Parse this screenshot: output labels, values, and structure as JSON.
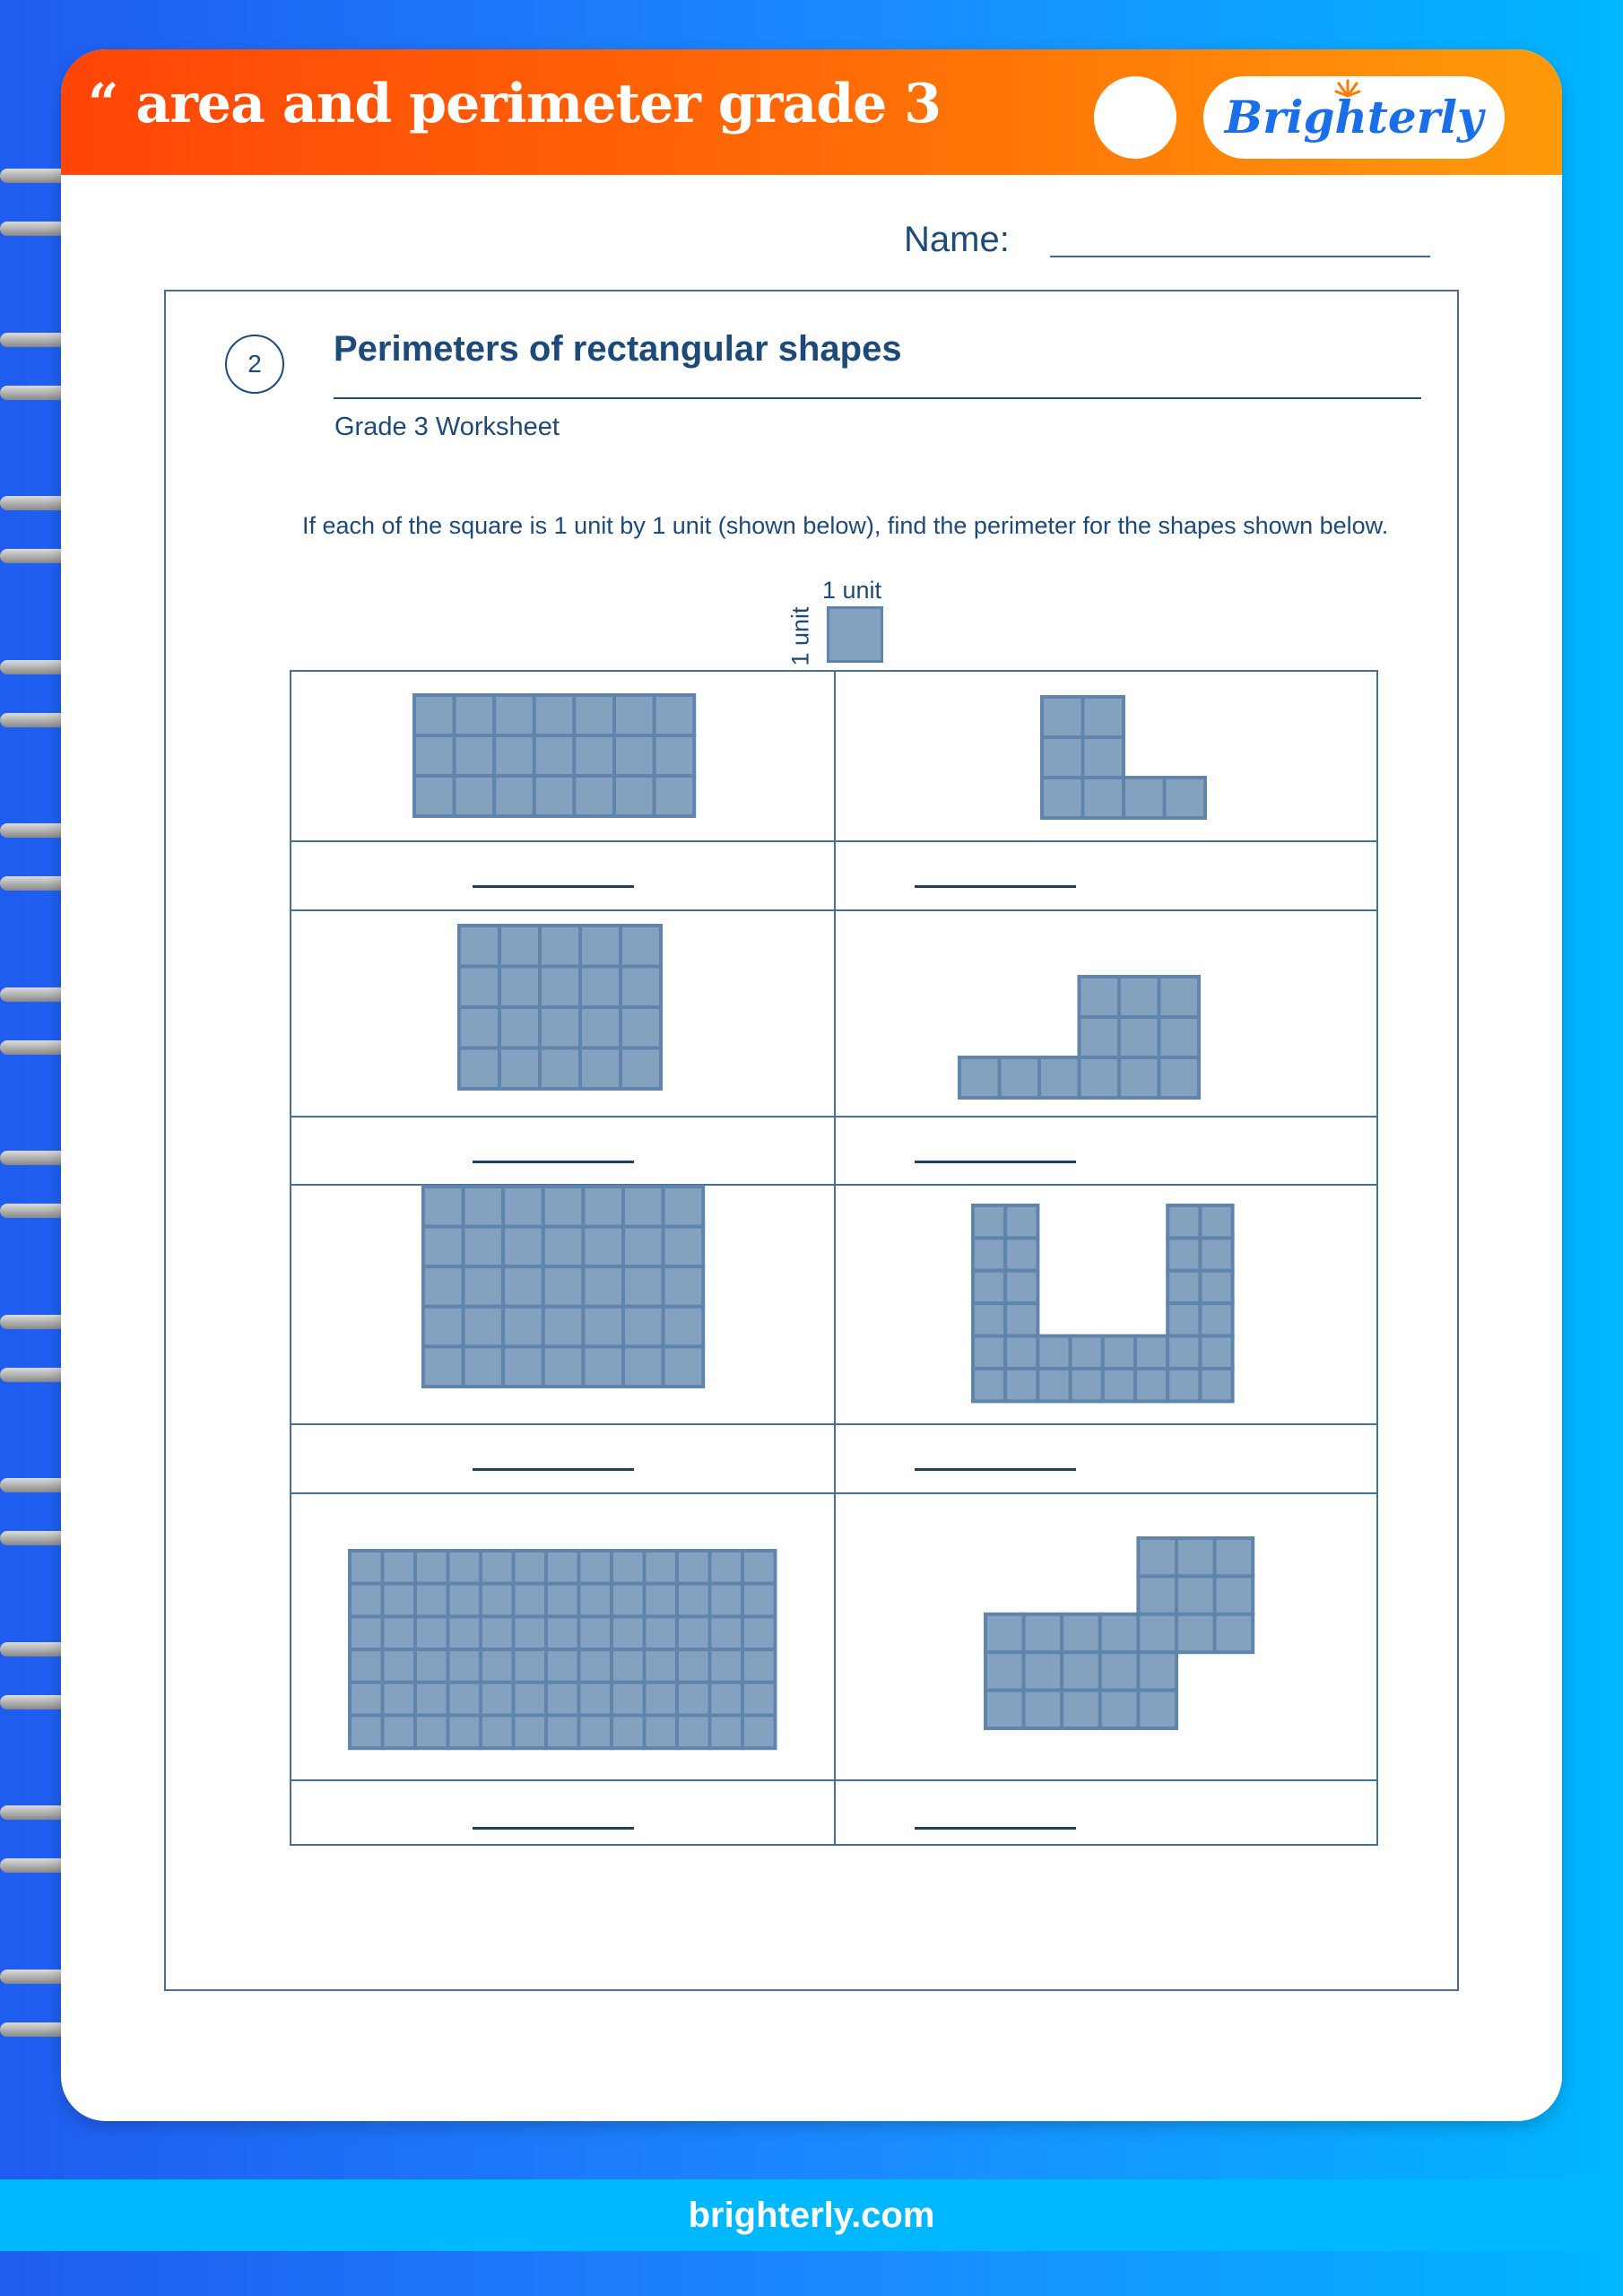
{
  "header": {
    "title": "“ area and perimeter grade 3",
    "logo": "Brighterly"
  },
  "name_label": "Name:",
  "section": {
    "number": "2",
    "title": "Perimeters of rectangular shapes",
    "subtitle": "Grade 3 Worksheet"
  },
  "instructions": "If each of the square is 1 unit by 1 unit (shown below), find the perimeter for the shapes shown below.",
  "unit_square": {
    "top_label": "1 unit",
    "side_label": "1 unit"
  },
  "shapes": [
    {
      "grid": [
        "1111111",
        "1111111",
        "1111111"
      ]
    },
    {
      "grid": [
        "1100",
        "1100",
        "1111"
      ]
    },
    {
      "grid": [
        "11111",
        "11111",
        "11111",
        "11111"
      ]
    },
    {
      "grid": [
        "000111",
        "000111",
        "111111"
      ]
    },
    {
      "grid": [
        "1111111",
        "1111111",
        "1111111",
        "1111111",
        "1111111"
      ]
    },
    {
      "grid": [
        "11000011",
        "11000011",
        "11000011",
        "11000011",
        "11111111",
        "11111111"
      ]
    },
    {
      "grid": [
        "1111111111111",
        "1111111111111",
        "1111111111111",
        "1111111111111",
        "1111111111111",
        "1111111111111"
      ]
    },
    {
      "grid": [
        "0000111",
        "0000111",
        "1111111",
        "1111100",
        "1111100"
      ]
    }
  ],
  "colors": {
    "square_fill": "#84a2c0",
    "square_stroke": "#5f85ad",
    "text": "#1e4a7a",
    "header_start": "#ff4508",
    "header_end": "#ff9a0a"
  },
  "footer": {
    "url": "brighterly.com"
  }
}
